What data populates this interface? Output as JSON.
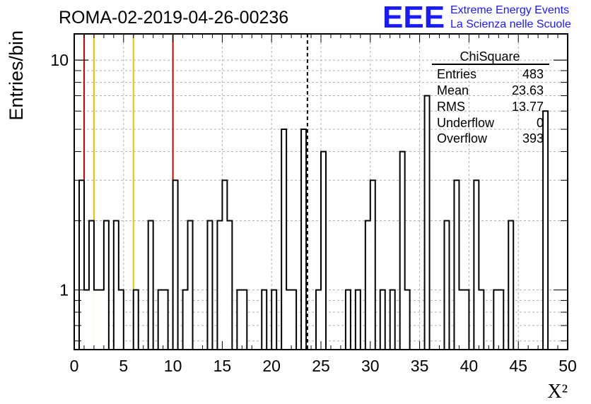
{
  "header": {
    "run_title": "ROMA-02-2019-04-26-00236",
    "logo_text": "EEE",
    "logo_line1": "Extreme Energy Events",
    "logo_line2": "La Scienza nelle Scuole"
  },
  "stats_box": {
    "title": "ChiSquare",
    "rows": [
      {
        "label": "Entries",
        "value": "483"
      },
      {
        "label": "Mean",
        "value": "23.63"
      },
      {
        "label": "RMS",
        "value": "13.77"
      },
      {
        "label": "Underflow",
        "value": "0"
      },
      {
        "label": "Overflow",
        "value": "393"
      }
    ]
  },
  "chart_data": {
    "type": "bar",
    "style": "step-histogram",
    "xlabel": "X²",
    "ylabel": "Entries/bin",
    "xlim": [
      0,
      50
    ],
    "ylim": [
      0.55,
      13
    ],
    "yscale": "log",
    "grid": true,
    "bin_width": 0.5,
    "x_ticks": [
      "0",
      "5",
      "10",
      "15",
      "20",
      "25",
      "30",
      "35",
      "40",
      "45",
      "50"
    ],
    "y_ticks": [
      "1",
      "10"
    ],
    "bins": [
      {
        "x": 0.5,
        "y": 3
      },
      {
        "x": 1.0,
        "y": 1
      },
      {
        "x": 1.5,
        "y": 2
      },
      {
        "x": 2.0,
        "y": 1
      },
      {
        "x": 2.5,
        "y": 1
      },
      {
        "x": 3.0,
        "y": 2
      },
      {
        "x": 4.0,
        "y": 2
      },
      {
        "x": 4.5,
        "y": 1
      },
      {
        "x": 6.0,
        "y": 1
      },
      {
        "x": 7.5,
        "y": 2
      },
      {
        "x": 8.5,
        "y": 1
      },
      {
        "x": 9.0,
        "y": 1
      },
      {
        "x": 10.0,
        "y": 3
      },
      {
        "x": 11.0,
        "y": 1
      },
      {
        "x": 11.5,
        "y": 2
      },
      {
        "x": 13.5,
        "y": 2
      },
      {
        "x": 14.5,
        "y": 2
      },
      {
        "x": 15.0,
        "y": 3
      },
      {
        "x": 15.5,
        "y": 2
      },
      {
        "x": 16.5,
        "y": 1
      },
      {
        "x": 17.0,
        "y": 1
      },
      {
        "x": 19.0,
        "y": 1
      },
      {
        "x": 20.0,
        "y": 1
      },
      {
        "x": 21.0,
        "y": 5
      },
      {
        "x": 21.5,
        "y": 1
      },
      {
        "x": 22.0,
        "y": 1
      },
      {
        "x": 23.0,
        "y": 5
      },
      {
        "x": 24.5,
        "y": 1
      },
      {
        "x": 25.0,
        "y": 4
      },
      {
        "x": 27.5,
        "y": 1
      },
      {
        "x": 28.5,
        "y": 1
      },
      {
        "x": 29.5,
        "y": 2
      },
      {
        "x": 30.0,
        "y": 3
      },
      {
        "x": 31.0,
        "y": 1
      },
      {
        "x": 32.0,
        "y": 1
      },
      {
        "x": 33.0,
        "y": 4
      },
      {
        "x": 33.5,
        "y": 1
      },
      {
        "x": 35.5,
        "y": 7
      },
      {
        "x": 37.5,
        "y": 2
      },
      {
        "x": 38.5,
        "y": 3
      },
      {
        "x": 39.0,
        "y": 1
      },
      {
        "x": 39.5,
        "y": 1
      },
      {
        "x": 40.5,
        "y": 3
      },
      {
        "x": 41.0,
        "y": 1
      },
      {
        "x": 42.5,
        "y": 1
      },
      {
        "x": 43.0,
        "y": 1
      },
      {
        "x": 44.0,
        "y": 2
      },
      {
        "x": 47.5,
        "y": 6
      }
    ],
    "reference_lines": [
      {
        "x": 1,
        "color": "#d40000",
        "style": "solid"
      },
      {
        "x": 2,
        "color": "#f0c000",
        "style": "solid"
      },
      {
        "x": 6,
        "color": "#f0c000",
        "style": "solid"
      },
      {
        "x": 10,
        "color": "#d40000",
        "style": "solid"
      },
      {
        "x": 23.63,
        "color": "#000000",
        "style": "dashed"
      }
    ],
    "colors": {
      "histogram": "#000000",
      "grid": "#b0b0b0",
      "logo": "#1a1aff"
    }
  }
}
